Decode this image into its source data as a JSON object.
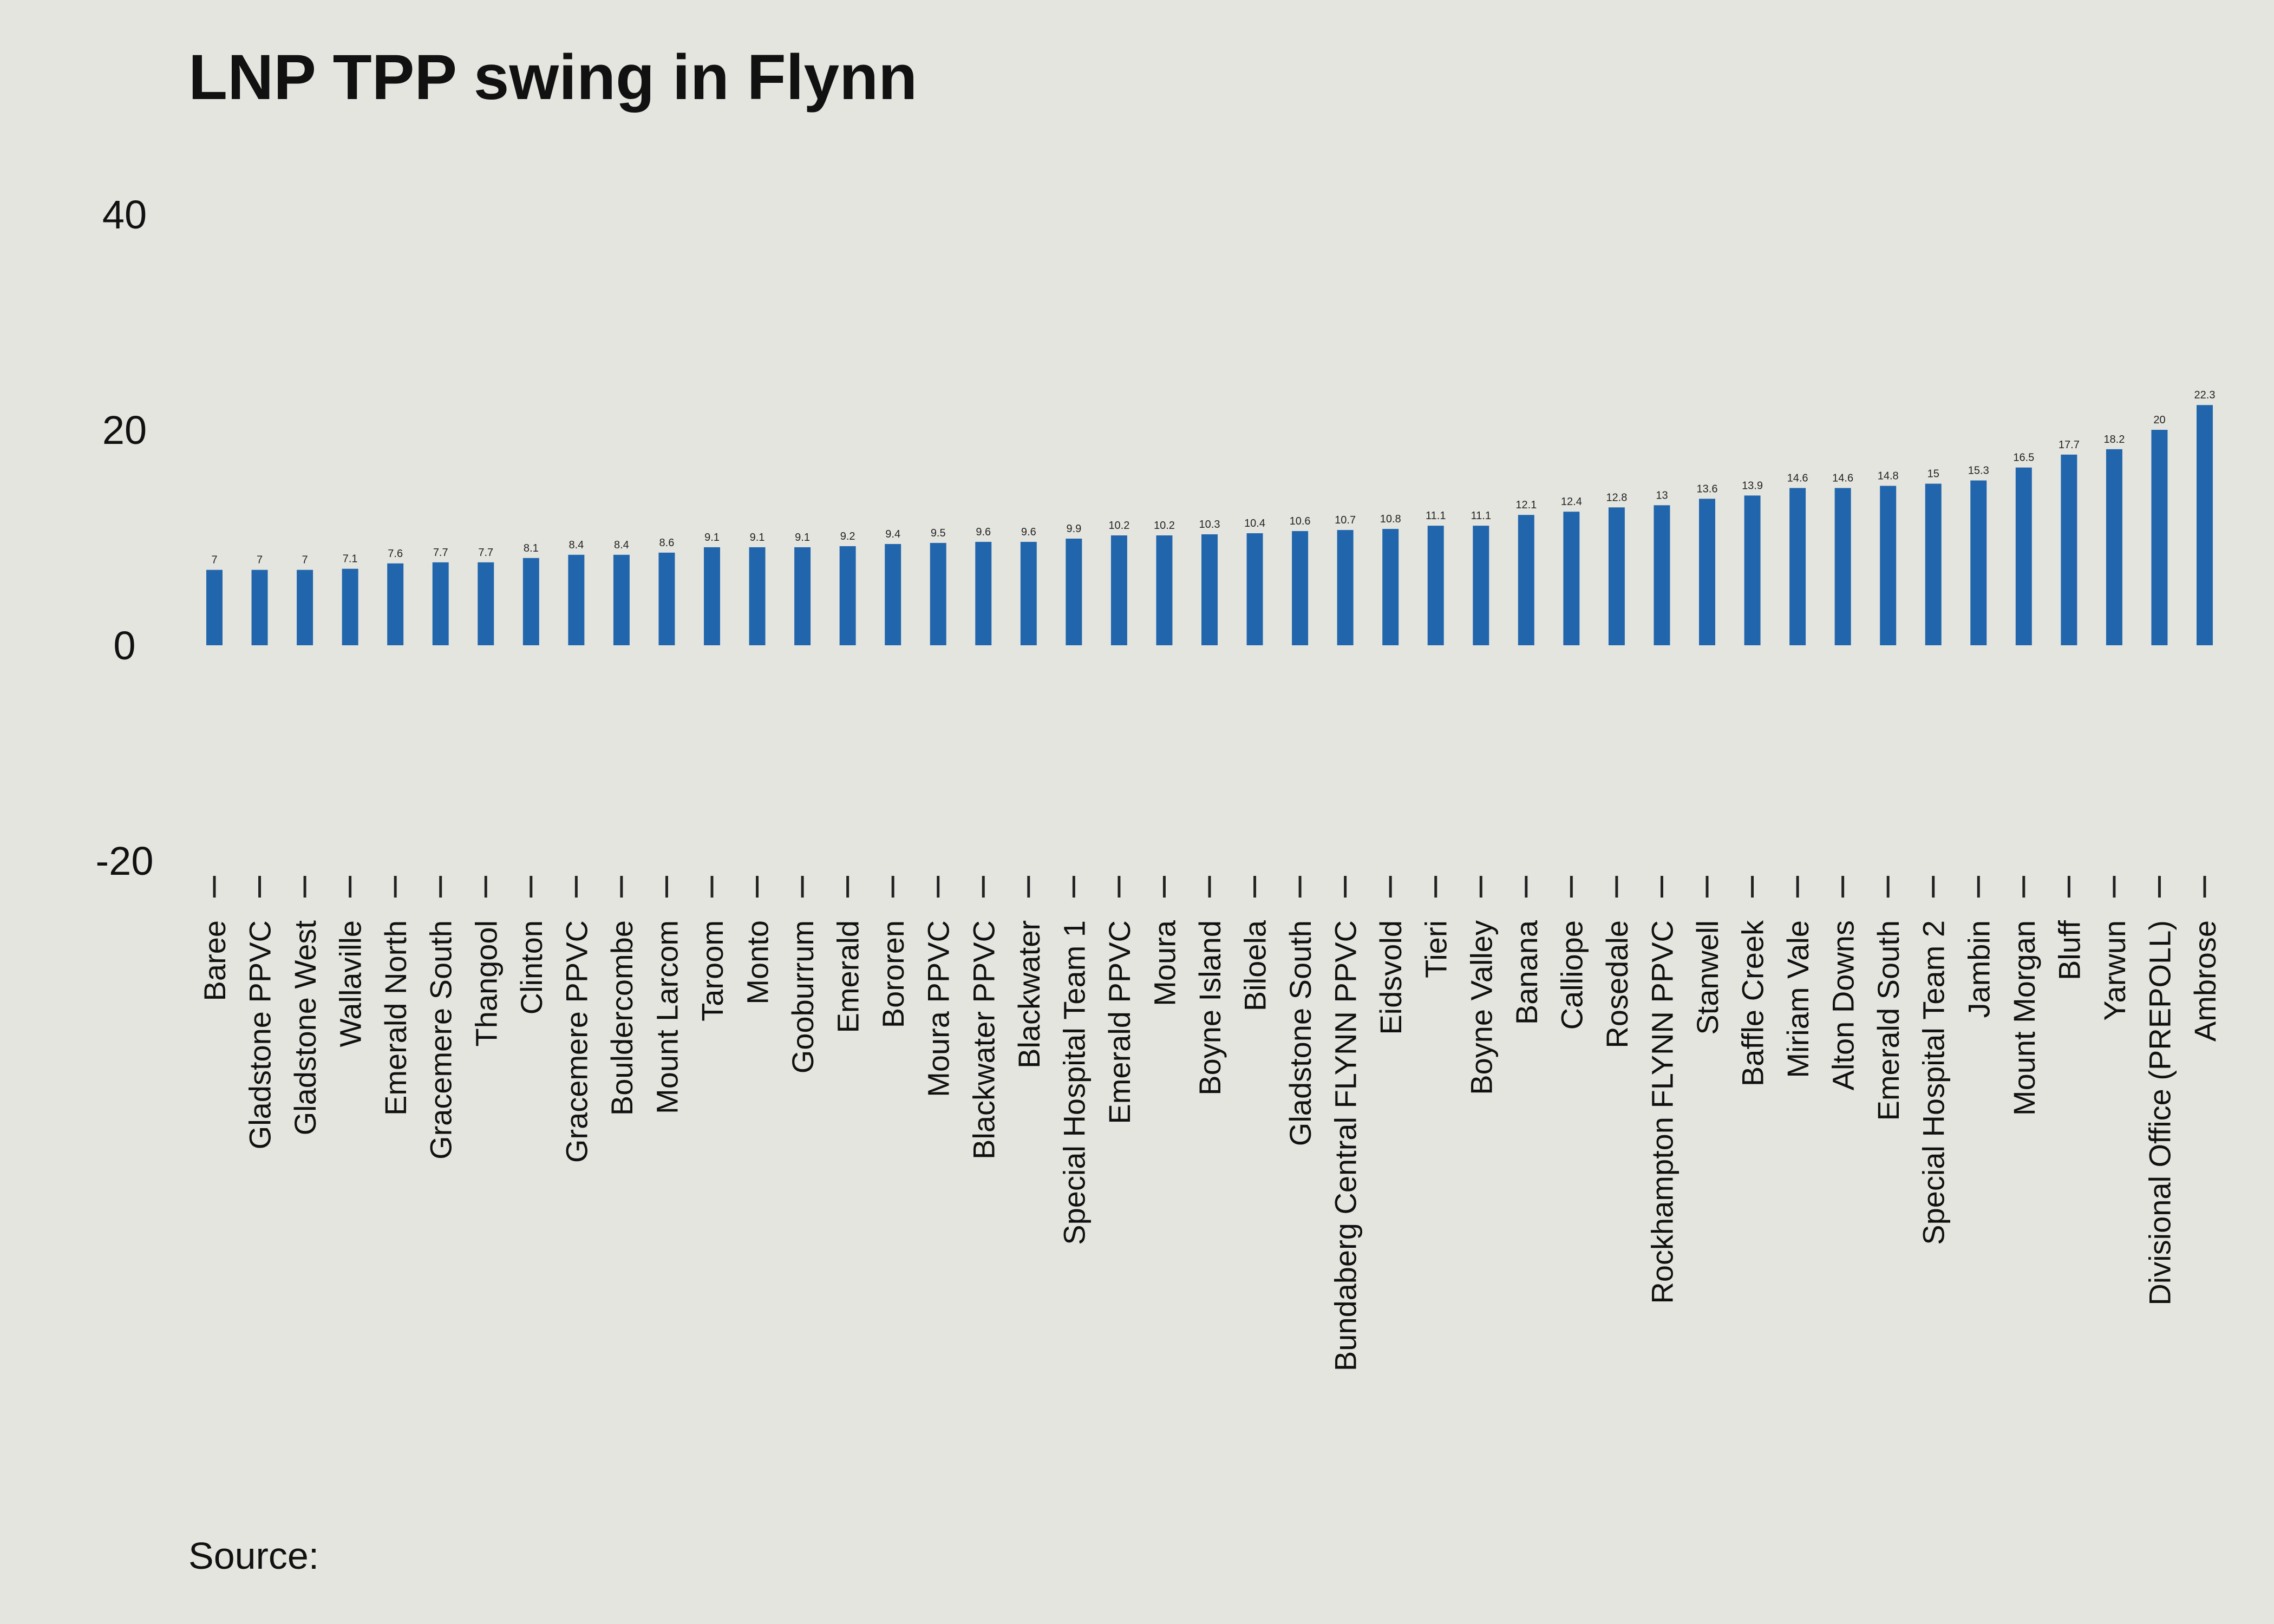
{
  "chart_data": {
    "type": "bar",
    "title": "LNP TPP swing in Flynn",
    "xlabel": "",
    "ylabel": "",
    "ylim": [
      -20,
      40
    ],
    "yticks": [
      -20,
      0,
      20,
      40
    ],
    "grid": false,
    "legend": "none",
    "bar_color": "#2166ac",
    "source_label": "Source:",
    "categories": [
      "Baree",
      "Gladstone PPVC",
      "Gladstone West",
      "Wallaville",
      "Emerald North",
      "Gracemere South",
      "Thangool",
      "Clinton",
      "Gracemere PPVC",
      "Bouldercombe",
      "Mount Larcom",
      "Taroom",
      "Monto",
      "Gooburrum",
      "Emerald",
      "Bororen",
      "Moura PPVC",
      "Blackwater PPVC",
      "Blackwater",
      "Special Hospital Team 1",
      "Emerald PPVC",
      "Moura",
      "Boyne Island",
      "Biloela",
      "Gladstone South",
      "Bundaberg Central FLYNN PPVC",
      "Eidsvold",
      "Tieri",
      "Boyne Valley",
      "Banana",
      "Calliope",
      "Rosedale",
      "Rockhampton FLYNN PPVC",
      "Stanwell",
      "Baffle Creek",
      "Miriam Vale",
      "Alton Downs",
      "Emerald South",
      "Special Hospital Team 2",
      "Jambin",
      "Mount Morgan",
      "Bluff",
      "Yarwun",
      "Divisional Office (PREPOLL)",
      "Ambrose"
    ],
    "values": [
      7,
      7,
      7,
      7.1,
      7.6,
      7.7,
      7.7,
      8.1,
      8.4,
      8.4,
      8.6,
      9.1,
      9.1,
      9.1,
      9.2,
      9.4,
      9.5,
      9.6,
      9.6,
      9.9,
      10.2,
      10.2,
      10.3,
      10.4,
      10.6,
      10.7,
      10.8,
      11.1,
      11.1,
      12.1,
      12.4,
      12.8,
      13,
      13.6,
      13.9,
      14.6,
      14.6,
      14.8,
      15,
      15.3,
      16.5,
      17.7,
      18.2,
      20,
      22.3
    ]
  }
}
